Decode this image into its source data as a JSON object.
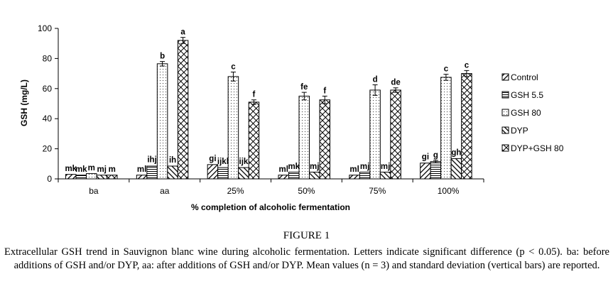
{
  "chart_data": {
    "type": "bar",
    "title": "",
    "xlabel": "% completion of alcoholic fermentation",
    "ylabel": "GSH  (mg/L)",
    "ylim": [
      0,
      100
    ],
    "yticks": [
      0,
      20,
      40,
      60,
      80,
      100
    ],
    "grid": false,
    "legend_position": "right",
    "categories": [
      "ba",
      "aa",
      "25%",
      "50%",
      "75%",
      "100%"
    ],
    "series": [
      {
        "name": "Control",
        "pattern": "diag-right",
        "values": [
          3,
          2.5,
          9.5,
          2.5,
          2.5,
          10.5
        ],
        "errors": [
          0.3,
          0.3,
          0.5,
          0.3,
          0.3,
          0.5
        ],
        "letters": [
          "mk",
          "ml",
          "gi",
          "ml",
          "ml",
          "gi"
        ]
      },
      {
        "name": "GSH 5.5",
        "pattern": "horizontal",
        "values": [
          2.5,
          8.5,
          7.5,
          4.5,
          4.5,
          11.5
        ],
        "errors": [
          0.3,
          0.6,
          0.5,
          0.3,
          0.3,
          0.8
        ],
        "letters": [
          "mk",
          "ihj",
          "ijkl",
          "mk",
          "mj",
          "g"
        ]
      },
      {
        "name": "GSH 80",
        "pattern": "dots",
        "values": [
          3.5,
          76.5,
          68,
          55,
          59,
          67.5
        ],
        "errors": [
          0.3,
          1.5,
          3,
          2.5,
          3.5,
          2
        ],
        "letters": [
          "m",
          "b",
          "c",
          "fe",
          "d",
          "c"
        ]
      },
      {
        "name": "DYP",
        "pattern": "diag-left",
        "values": [
          2.5,
          8.5,
          7.5,
          4.5,
          4.5,
          13.5
        ],
        "errors": [
          0.3,
          0.5,
          0.5,
          0.3,
          0.3,
          0.5
        ],
        "letters": [
          "mj",
          "ih",
          "ijk",
          "mj",
          "mj",
          "gh"
        ]
      },
      {
        "name": "DYP+GSH 80",
        "pattern": "crosshatch",
        "values": [
          2.5,
          92,
          51,
          52.5,
          59,
          70
        ],
        "errors": [
          0.3,
          2,
          1.5,
          2.5,
          1.5,
          2
        ],
        "letters": [
          "m",
          "a",
          "f",
          "f",
          "de",
          "c"
        ]
      }
    ]
  },
  "caption": {
    "title": "FIGURE 1",
    "text": "Extracellular GSH trend in Sauvignon blanc wine during alcoholic fermentation. Letters indicate significant difference (p < 0.05). ba: before additions of GSH and/or DYP, aa: after additions of GSH and/or DYP. Mean values (n = 3) and standard deviation (vertical bars) are reported."
  }
}
